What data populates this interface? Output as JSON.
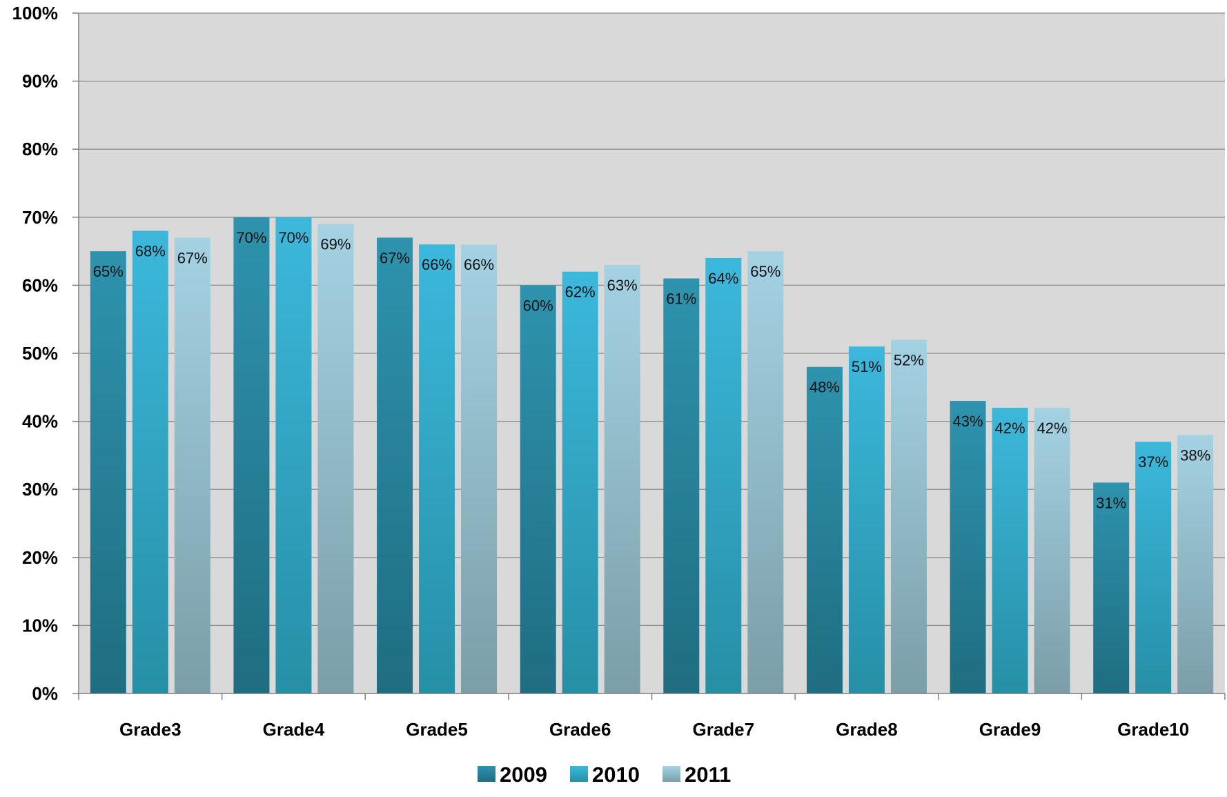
{
  "chart_data": {
    "type": "bar",
    "title": "",
    "xlabel": "",
    "ylabel": "",
    "categories": [
      "Grade3",
      "Grade4",
      "Grade5",
      "Grade6",
      "Grade7",
      "Grade8",
      "Grade9",
      "Grade10"
    ],
    "series": [
      {
        "name": "2009",
        "values": [
          65,
          70,
          67,
          60,
          61,
          48,
          43,
          31
        ],
        "labels": [
          "65%",
          "70%",
          "67%",
          "60%",
          "61%",
          "48%",
          "43%",
          "31%"
        ],
        "color_top": "#2e93ae",
        "color_bottom": "#1f6d80"
      },
      {
        "name": "2010",
        "values": [
          68,
          70,
          66,
          62,
          64,
          51,
          42,
          37
        ],
        "labels": [
          "68%",
          "70%",
          "66%",
          "62%",
          "64%",
          "51%",
          "42%",
          "37%"
        ],
        "color_top": "#3cb8dc",
        "color_bottom": "#268fa6"
      },
      {
        "name": "2011",
        "values": [
          67,
          69,
          66,
          63,
          65,
          52,
          42,
          38
        ],
        "labels": [
          "67%",
          "69%",
          "66%",
          "63%",
          "65%",
          "52%",
          "42%",
          "38%"
        ],
        "color_top": "#a4d2e3",
        "color_bottom": "#7b9ea8"
      }
    ],
    "ylim": [
      0,
      100
    ],
    "yticks": [
      0,
      10,
      20,
      30,
      40,
      50,
      60,
      70,
      80,
      90,
      100
    ],
    "ytick_labels": [
      "0%",
      "10%",
      "20%",
      "30%",
      "40%",
      "50%",
      "60%",
      "70%",
      "80%",
      "90%",
      "100%"
    ],
    "grid": true,
    "plot_background": "#d9d9d9",
    "legend_position": "bottom-center"
  }
}
